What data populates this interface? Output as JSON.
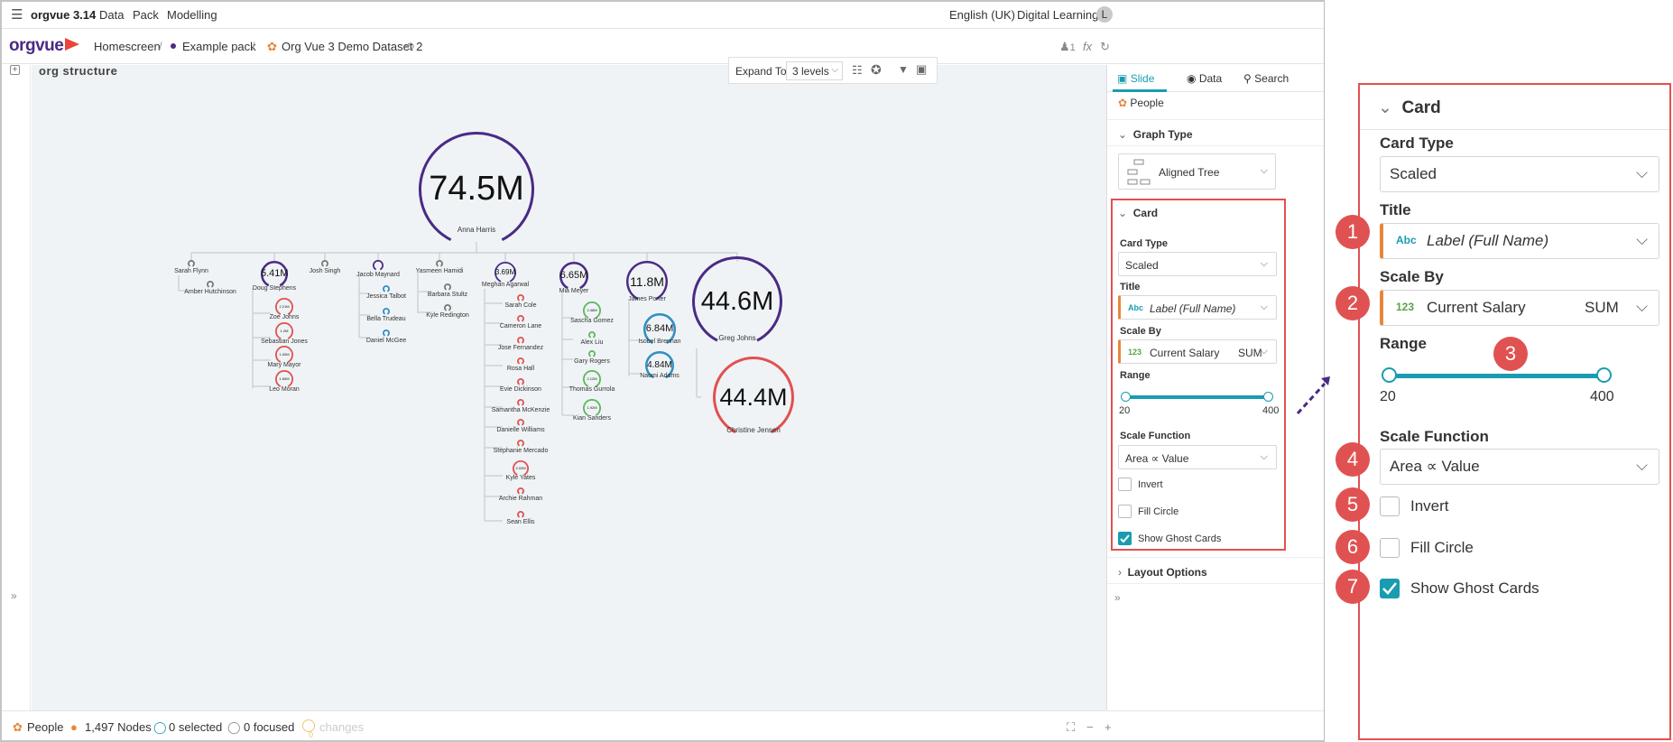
{
  "app": {
    "name": "orgvue 3.14",
    "menu": [
      "Data",
      "Pack",
      "Modelling"
    ],
    "language": "English (UK)",
    "workspace": "Digital Learning",
    "avatar": "L"
  },
  "nav": {
    "logo": "orgvue",
    "crumbs": [
      "Homescreen",
      "Example pack",
      "Org Vue 3 Demo Dataset 2"
    ],
    "user_count": "1",
    "fx": "fx"
  },
  "canvas": {
    "title": "org structure",
    "expand_label": "Expand To",
    "expand_value": "3 levels",
    "root": {
      "value": "74.5M",
      "name": "Anna Harris"
    },
    "level2": [
      {
        "name": "Sarah Flynn"
      },
      {
        "name": "Amber Hutchinson"
      },
      {
        "name": "Doug Stephens",
        "value": "5.41M"
      },
      {
        "name": "Josh Singh"
      },
      {
        "name": "Jacob Maynard"
      },
      {
        "name": "Yasmeen Hamidi"
      },
      {
        "name": "Meghan Agarwal",
        "value": "3.69M"
      },
      {
        "name": "Mia Meyer",
        "value": "6.65M"
      },
      {
        "name": "James Porter",
        "value": "11.8M"
      },
      {
        "name": "Greg Johns",
        "value": "44.6M"
      },
      {
        "name": "Christine Jensen",
        "value": "44.4M"
      }
    ],
    "doug_children": [
      {
        "name": "Zoe Johns",
        "value": "2.21M"
      },
      {
        "name": "Sebastian Jones",
        "value": "1.2M"
      },
      {
        "name": "Mary Mayor",
        "value": "1.00M"
      },
      {
        "name": "Leo Moran",
        "value": "1.69M"
      }
    ],
    "jacob_children": [
      "Jessica Talbot",
      "Bella Trudeau",
      "Daniel McGee"
    ],
    "yasmeen_children": [
      "Barbara Stultz",
      "Kyle Redington"
    ],
    "meghan_children": [
      "Sarah Cole",
      "Cameron Lane",
      "Jose Fernandez",
      "Rosa Hall",
      "Evie Dickinson",
      "Samantha McKenzie",
      "Danielle Williams",
      "Stephanie Mercado",
      "Kyle Yates",
      "Archie Rahman",
      "Sean Ellis"
    ],
    "kyle_value": "2.02M",
    "mia_children": [
      {
        "name": "Sascha Gomez",
        "value": "2.46M"
      },
      {
        "name": "Alex Liu",
        "value": ""
      },
      {
        "name": "Gary Rogers",
        "value": ""
      },
      {
        "name": "Thomas Gurrola",
        "value": "2.12M"
      },
      {
        "name": "Kian Sanders",
        "value": "1.92M"
      }
    ],
    "james_children": [
      {
        "name": "Isobel Brennan",
        "value": "6.84M"
      },
      {
        "name": "Naomi Adams",
        "value": "4.84M"
      }
    ]
  },
  "panel": {
    "tabs": [
      "Slide",
      "Data",
      "Search"
    ],
    "people": "People",
    "graph_type_header": "Graph Type",
    "graph_type_value": "Aligned Tree",
    "card_header": "Card",
    "card_type_label": "Card Type",
    "card_type_value": "Scaled",
    "title_label": "Title",
    "title_tag": "Abc",
    "title_value": "Label (Full Name)",
    "scale_by_label": "Scale By",
    "scale_by_tag": "123",
    "scale_by_value": "Current Salary",
    "scale_by_agg": "SUM",
    "range_label": "Range",
    "range_min": "20",
    "range_max": "400",
    "scale_fn_label": "Scale Function",
    "scale_fn_value": "Area ∝ Value",
    "invert_label": "Invert",
    "fill_label": "Fill Circle",
    "ghost_label": "Show Ghost Cards",
    "layout_header": "Layout Options"
  },
  "status": {
    "dataset": "People",
    "nodes": "1,497 Nodes",
    "selected": "0 selected",
    "focused": "0 focused",
    "changes": "changes",
    "changes_count": "0"
  },
  "zoom": {
    "bubbles": [
      "1",
      "2",
      "3",
      "4",
      "5",
      "6",
      "7"
    ]
  },
  "colors": {
    "accent": "#1a9cb0",
    "brand": "#e8463a",
    "callout": "#e25050",
    "purple": "#4a2a86"
  }
}
